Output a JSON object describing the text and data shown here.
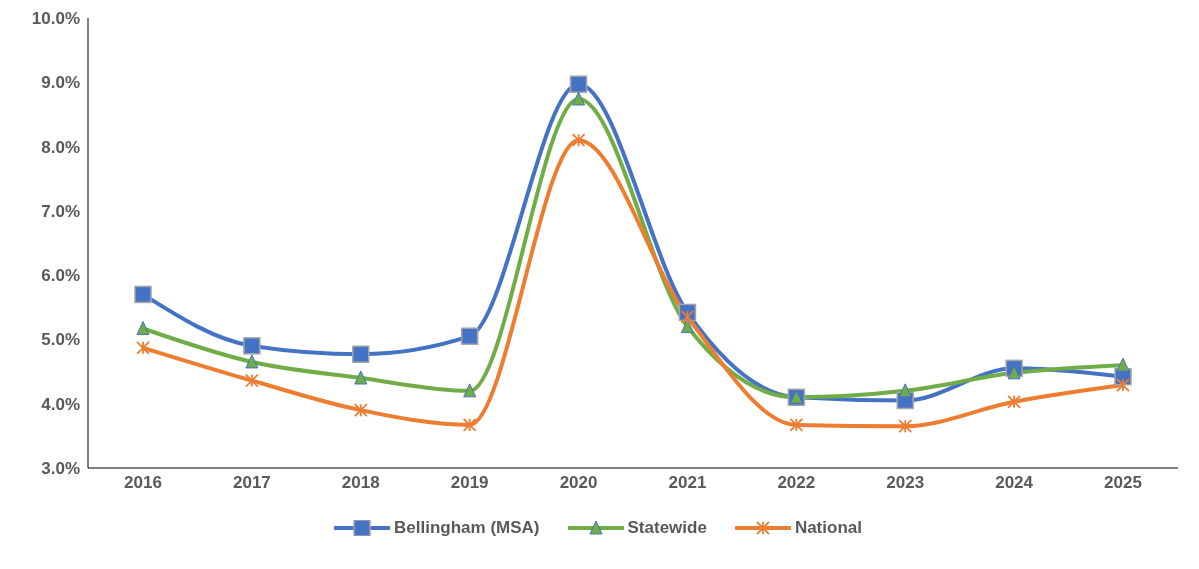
{
  "chart_data": {
    "type": "line",
    "categories": [
      "2016",
      "2017",
      "2018",
      "2019",
      "2020",
      "2021",
      "2022",
      "2023",
      "2024",
      "2025"
    ],
    "series": [
      {
        "name": "Bellingham (MSA)",
        "color": "#4472c4",
        "marker": "square",
        "values": [
          5.7,
          4.9,
          4.77,
          5.05,
          8.97,
          5.42,
          4.1,
          4.05,
          4.55,
          4.42
        ]
      },
      {
        "name": "Statewide",
        "color": "#70ad47",
        "marker": "triangle",
        "values": [
          5.17,
          4.65,
          4.4,
          4.2,
          8.74,
          5.2,
          4.1,
          4.2,
          4.48,
          4.6
        ]
      },
      {
        "name": "National",
        "color": "#ed7d31",
        "marker": "cross",
        "values": [
          4.87,
          4.36,
          3.9,
          3.67,
          8.1,
          5.35,
          3.67,
          3.65,
          4.03,
          4.29
        ]
      }
    ],
    "ylim": [
      3,
      10
    ],
    "yticks": [
      {
        "value": 3,
        "label": "3.0%"
      },
      {
        "value": 4,
        "label": "4.0%"
      },
      {
        "value": 5,
        "label": "5.0%"
      },
      {
        "value": 6,
        "label": "6.0%"
      },
      {
        "value": 7,
        "label": "7.0%"
      },
      {
        "value": 8,
        "label": "8.0%"
      },
      {
        "value": 9,
        "label": "9.0%"
      },
      {
        "value": 10,
        "label": "10.0%"
      }
    ],
    "grid": false,
    "legend": "bottom",
    "line_style": "solid"
  }
}
